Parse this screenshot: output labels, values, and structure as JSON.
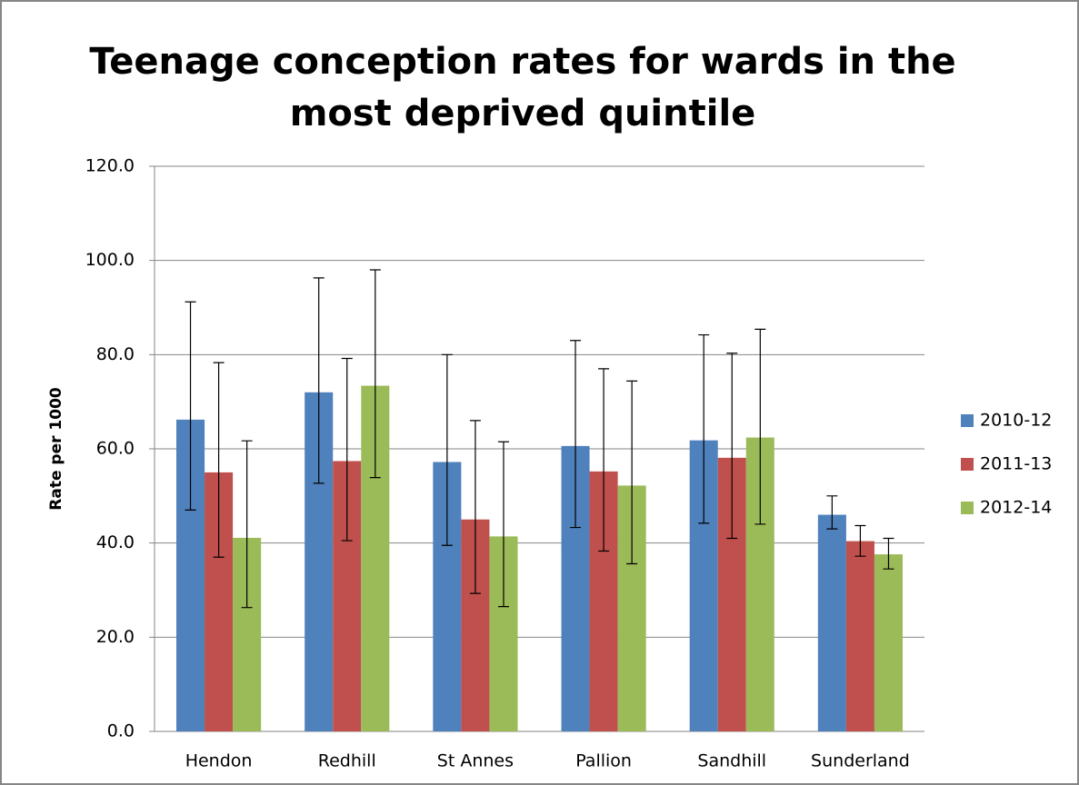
{
  "chart_data": {
    "type": "bar",
    "title": [
      "Teenage conception rates for wards in the",
      "most deprived quintile"
    ],
    "y_label": "Rate per 1000",
    "categories": [
      "Hendon",
      "Redhill",
      "St Annes",
      "Pallion",
      "Sandhill",
      "Sunderland"
    ],
    "series": [
      {
        "name": "2010-12",
        "color": "#4f81bd",
        "values": [
          66.2,
          72.0,
          57.2,
          60.6,
          61.8,
          46.0
        ],
        "lower": [
          47.0,
          52.7,
          39.5,
          43.3,
          44.2,
          43.0
        ],
        "upper": [
          91.2,
          96.3,
          80.0,
          83.0,
          84.2,
          50.0
        ]
      },
      {
        "name": "2011-13",
        "color": "#c0504d",
        "values": [
          55.0,
          57.4,
          45.0,
          55.2,
          58.1,
          40.4
        ],
        "lower": [
          37.0,
          40.5,
          29.3,
          38.3,
          41.0,
          37.2
        ],
        "upper": [
          78.3,
          79.2,
          66.0,
          77.0,
          80.3,
          43.7
        ]
      },
      {
        "name": "2012-14",
        "color": "#9bbb59",
        "values": [
          41.1,
          73.4,
          41.4,
          52.2,
          62.4,
          37.6
        ],
        "lower": [
          26.3,
          53.9,
          26.5,
          35.6,
          44.0,
          34.5
        ],
        "upper": [
          61.7,
          98.0,
          61.5,
          74.4,
          85.4,
          41.0
        ]
      }
    ],
    "ylim": [
      0,
      120
    ],
    "yticks": [
      {
        "value": 0,
        "label": "0.0"
      },
      {
        "value": 20,
        "label": "20.0"
      },
      {
        "value": 40,
        "label": "40.0"
      },
      {
        "value": 60,
        "label": "60.0"
      },
      {
        "value": 80,
        "label": "80.0"
      },
      {
        "value": 100,
        "label": "100.0"
      },
      {
        "value": 120,
        "label": "120.0"
      }
    ],
    "grid": true,
    "legend": "right"
  }
}
